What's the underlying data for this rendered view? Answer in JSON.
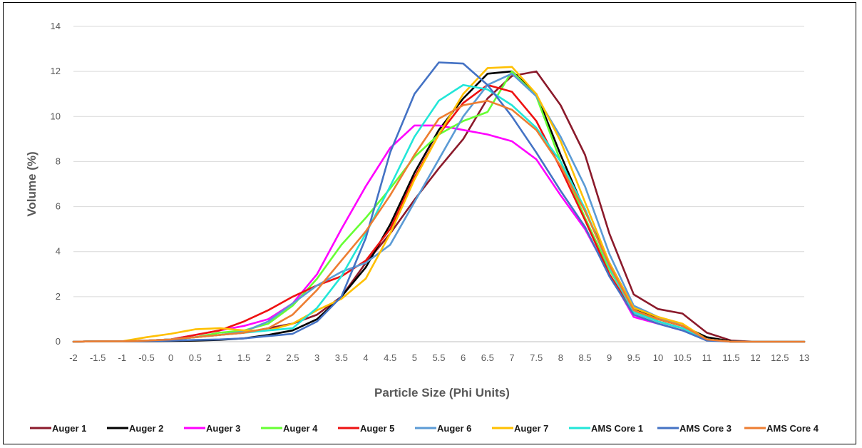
{
  "chart_data": {
    "type": "line",
    "title": "",
    "xlabel": "Particle Size (Phi Units)",
    "ylabel": "Volume (%)",
    "ylim": [
      0,
      14
    ],
    "yticks": [
      "0",
      "2",
      "4",
      "6",
      "8",
      "10",
      "12",
      "14"
    ],
    "grid": true,
    "legend_position": "bottom",
    "categories": [
      "-2",
      "-1.5",
      "-1",
      "-0.5",
      "0",
      "0.5",
      "1",
      "1.5",
      "2",
      "2.5",
      "3",
      "3.5",
      "4",
      "4.5",
      "5",
      "5.5",
      "6",
      "6.5",
      "7",
      "7.5",
      "8",
      "8.5",
      "9",
      "9.5",
      "10",
      "10.5",
      "11",
      "11.5",
      "12",
      "12.5",
      "13"
    ],
    "series": [
      {
        "name": "Auger 1",
        "color": "#8b1a2b",
        "values": [
          0,
          0.02,
          0.02,
          0.05,
          0.1,
          0.2,
          0.3,
          0.4,
          0.6,
          0.8,
          1.2,
          2.0,
          3.5,
          4.8,
          6.3,
          7.7,
          9.0,
          10.8,
          11.8,
          12.0,
          10.5,
          8.3,
          4.8,
          2.1,
          1.45,
          1.25,
          0.4,
          0.05,
          0,
          0,
          0
        ]
      },
      {
        "name": "Auger 2",
        "color": "#000000",
        "values": [
          0,
          0.02,
          0.02,
          0.02,
          0.03,
          0.05,
          0.08,
          0.15,
          0.3,
          0.5,
          1.0,
          2.0,
          3.3,
          5.2,
          7.5,
          9.4,
          10.8,
          11.9,
          12.0,
          11.0,
          8.3,
          5.8,
          3.5,
          1.5,
          1.0,
          0.7,
          0.2,
          0.02,
          0,
          0,
          0
        ]
      },
      {
        "name": "Auger 3",
        "color": "#ff00ff",
        "values": [
          0,
          0.02,
          0.02,
          0.05,
          0.1,
          0.3,
          0.5,
          0.7,
          1.0,
          1.7,
          3.0,
          5.0,
          6.9,
          8.6,
          9.6,
          9.6,
          9.4,
          9.2,
          8.9,
          8.1,
          6.5,
          5.0,
          3.0,
          1.1,
          0.8,
          0.5,
          0.1,
          0,
          0,
          0,
          0
        ]
      },
      {
        "name": "Auger 4",
        "color": "#66ff33",
        "values": [
          0,
          0.02,
          0.02,
          0.05,
          0.1,
          0.2,
          0.4,
          0.5,
          0.8,
          1.6,
          2.8,
          4.3,
          5.5,
          6.8,
          8.2,
          9.2,
          9.8,
          10.2,
          12.0,
          10.9,
          8.0,
          5.5,
          3.2,
          1.4,
          0.9,
          0.6,
          0.1,
          0,
          0,
          0,
          0
        ]
      },
      {
        "name": "Auger 5",
        "color": "#ee1111",
        "values": [
          0,
          0.02,
          0.02,
          0.05,
          0.1,
          0.3,
          0.5,
          0.9,
          1.4,
          2.0,
          2.5,
          2.9,
          3.6,
          5.0,
          7.3,
          9.2,
          10.6,
          11.4,
          11.1,
          9.8,
          7.7,
          5.4,
          3.0,
          1.3,
          0.9,
          0.6,
          0.1,
          0,
          0,
          0,
          0
        ]
      },
      {
        "name": "Auger 6",
        "color": "#5b9bd5",
        "values": [
          0,
          0.02,
          0.02,
          0.05,
          0.1,
          0.2,
          0.3,
          0.45,
          0.9,
          1.7,
          2.5,
          3.1,
          3.5,
          4.3,
          6.2,
          8.1,
          10.0,
          11.4,
          11.9,
          10.9,
          9.1,
          6.9,
          3.9,
          1.6,
          1.1,
          0.7,
          0.1,
          0,
          0,
          0,
          0
        ]
      },
      {
        "name": "Auger 7",
        "color": "#ffc000",
        "values": [
          0,
          0.02,
          0.02,
          0.2,
          0.35,
          0.55,
          0.6,
          0.5,
          0.5,
          0.8,
          1.4,
          1.9,
          2.8,
          4.8,
          7.2,
          9.2,
          11.0,
          12.15,
          12.2,
          11.0,
          8.9,
          6.2,
          3.5,
          1.5,
          1.1,
          0.8,
          0.1,
          0,
          0,
          0,
          0
        ]
      },
      {
        "name": "AMS Core 1",
        "color": "#22e6d8",
        "values": [
          0,
          0.02,
          0.02,
          0.05,
          0.1,
          0.2,
          0.3,
          0.4,
          0.5,
          0.6,
          1.5,
          2.9,
          4.8,
          6.9,
          9.1,
          10.7,
          11.4,
          11.2,
          10.5,
          9.5,
          8.0,
          5.9,
          3.3,
          1.3,
          0.9,
          0.6,
          0.1,
          0,
          0,
          0,
          0
        ]
      },
      {
        "name": "AMS Core 3",
        "color": "#4472c4",
        "values": [
          0,
          0.02,
          0.02,
          0.03,
          0.05,
          0.08,
          0.1,
          0.15,
          0.25,
          0.35,
          0.9,
          2.0,
          4.6,
          8.4,
          11.0,
          12.4,
          12.35,
          11.4,
          10.0,
          8.4,
          6.7,
          5.1,
          2.9,
          1.2,
          0.8,
          0.5,
          0.05,
          0,
          0,
          0,
          0
        ]
      },
      {
        "name": "AMS Core 4",
        "color": "#ed7d31",
        "values": [
          0,
          0.02,
          0.02,
          0.05,
          0.1,
          0.2,
          0.3,
          0.4,
          0.6,
          1.2,
          2.3,
          3.6,
          4.9,
          6.5,
          8.3,
          9.9,
          10.5,
          10.7,
          10.3,
          9.4,
          7.8,
          5.8,
          3.4,
          1.4,
          1.0,
          0.7,
          0.1,
          0,
          0,
          0,
          0
        ]
      }
    ]
  }
}
